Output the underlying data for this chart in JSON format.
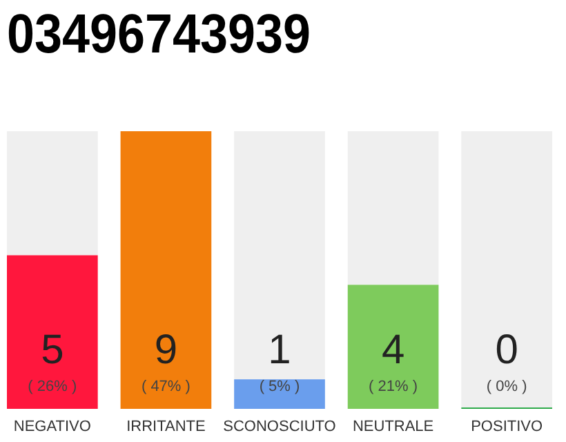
{
  "chart_data": {
    "type": "bar",
    "title": "03496743939",
    "categories": [
      "NEGATIVO",
      "IRRITANTE",
      "SCONOSCIUTO",
      "NEUTRALE",
      "POSITIVO"
    ],
    "values": [
      26,
      47,
      5,
      21,
      0
    ],
    "colors": [
      "#ff173d",
      "#f27e0c",
      "#6a9eed",
      "#7ecb5c",
      "#2eaa4a"
    ],
    "value_labels": [
      "( 26% )",
      "( 47% )",
      "( 5% )",
      "( 21% )",
      "( 0% )"
    ],
    "annotations": [
      "5",
      "9",
      "1",
      "4",
      "0"
    ]
  }
}
